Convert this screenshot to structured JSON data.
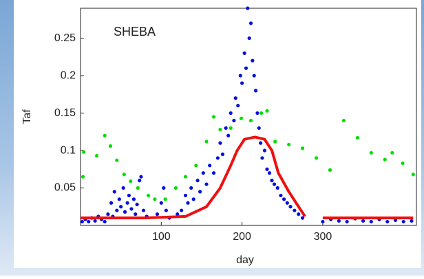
{
  "chart_data": {
    "type": "scatter",
    "annotation": "SHEBA",
    "xlabel": "day",
    "ylabel": "Taf",
    "xlim": [
      0,
      416
    ],
    "ylim": [
      0,
      0.29
    ],
    "xticks": [
      100,
      200,
      300
    ],
    "yticks": [
      0.05,
      0.1,
      0.15,
      0.2,
      0.25
    ],
    "series": [
      {
        "color": "#00e000",
        "mode": "markers",
        "x": [
          3,
          4,
          20,
          30,
          37,
          45,
          54,
          62,
          71,
          84,
          92,
          105,
          118,
          130,
          143,
          156,
          165,
          173,
          186,
          199,
          211,
          224,
          231,
          241,
          258,
          275,
          292,
          309,
          326,
          343,
          360,
          377,
          386,
          399,
          412
        ],
        "values": [
          0.065,
          0.098,
          0.093,
          0.12,
          0.106,
          0.087,
          0.068,
          0.059,
          0.05,
          0.04,
          0.035,
          0.035,
          0.05,
          0.065,
          0.08,
          0.112,
          0.145,
          0.128,
          0.13,
          0.143,
          0.14,
          0.15,
          0.153,
          0.112,
          0.108,
          0.103,
          0.09,
          0.074,
          0.14,
          0.117,
          0.097,
          0.088,
          0.097,
          0.083,
          0.068
        ]
      },
      {
        "color": "#0010e0",
        "mode": "markers",
        "x": [
          2,
          6,
          10,
          14,
          18,
          22,
          26,
          30,
          34,
          38,
          40,
          42,
          45,
          48,
          50,
          53,
          55,
          58,
          60,
          63,
          66,
          68,
          70,
          73,
          75,
          78,
          82,
          95,
          100,
          103,
          106,
          110,
          120,
          125,
          130,
          133,
          137,
          140,
          145,
          148,
          152,
          156,
          160,
          165,
          170,
          173,
          176,
          180,
          183,
          186,
          190,
          192,
          195,
          198,
          200,
          203,
          205,
          207,
          209,
          211,
          213,
          215,
          217,
          219,
          221,
          223,
          225,
          228,
          231,
          234,
          237,
          240,
          244,
          248,
          252,
          256,
          260,
          265,
          270,
          275,
          300,
          310,
          320,
          330,
          340,
          350,
          360,
          370,
          380,
          390,
          400,
          410
        ],
        "values": [
          0.005,
          0.008,
          0.005,
          0.01,
          0.006,
          0.012,
          0.008,
          0.005,
          0.015,
          0.03,
          0.012,
          0.045,
          0.02,
          0.035,
          0.025,
          0.05,
          0.018,
          0.03,
          0.04,
          0.022,
          0.035,
          0.015,
          0.028,
          0.06,
          0.065,
          0.02,
          0.012,
          0.015,
          0.03,
          0.05,
          0.02,
          0.01,
          0.015,
          0.02,
          0.04,
          0.03,
          0.05,
          0.035,
          0.06,
          0.045,
          0.07,
          0.055,
          0.08,
          0.07,
          0.09,
          0.11,
          0.095,
          0.13,
          0.12,
          0.15,
          0.14,
          0.17,
          0.16,
          0.2,
          0.19,
          0.23,
          0.21,
          0.29,
          0.25,
          0.27,
          0.22,
          0.2,
          0.18,
          0.15,
          0.13,
          0.11,
          0.09,
          0.1,
          0.075,
          0.07,
          0.06,
          0.055,
          0.05,
          0.04,
          0.035,
          0.03,
          0.025,
          0.02,
          0.015,
          0.01,
          0.005,
          0.008,
          0.006,
          0.005,
          0.009,
          0.006,
          0.005,
          0.008,
          0.005,
          0.007,
          0.005,
          0.006
        ]
      },
      {
        "color": "#ee1010",
        "mode": "line",
        "x": [
          0,
          40,
          80,
          130,
          156,
          173,
          186,
          194,
          203,
          216,
          228,
          237,
          245,
          258,
          267,
          278,
          null,
          300,
          350,
          412
        ],
        "values": [
          0.01,
          0.01,
          0.01,
          0.012,
          0.025,
          0.05,
          0.08,
          0.1,
          0.115,
          0.118,
          0.115,
          0.1,
          0.07,
          0.045,
          0.03,
          0.012,
          null,
          0.01,
          0.01,
          0.01
        ]
      }
    ]
  }
}
